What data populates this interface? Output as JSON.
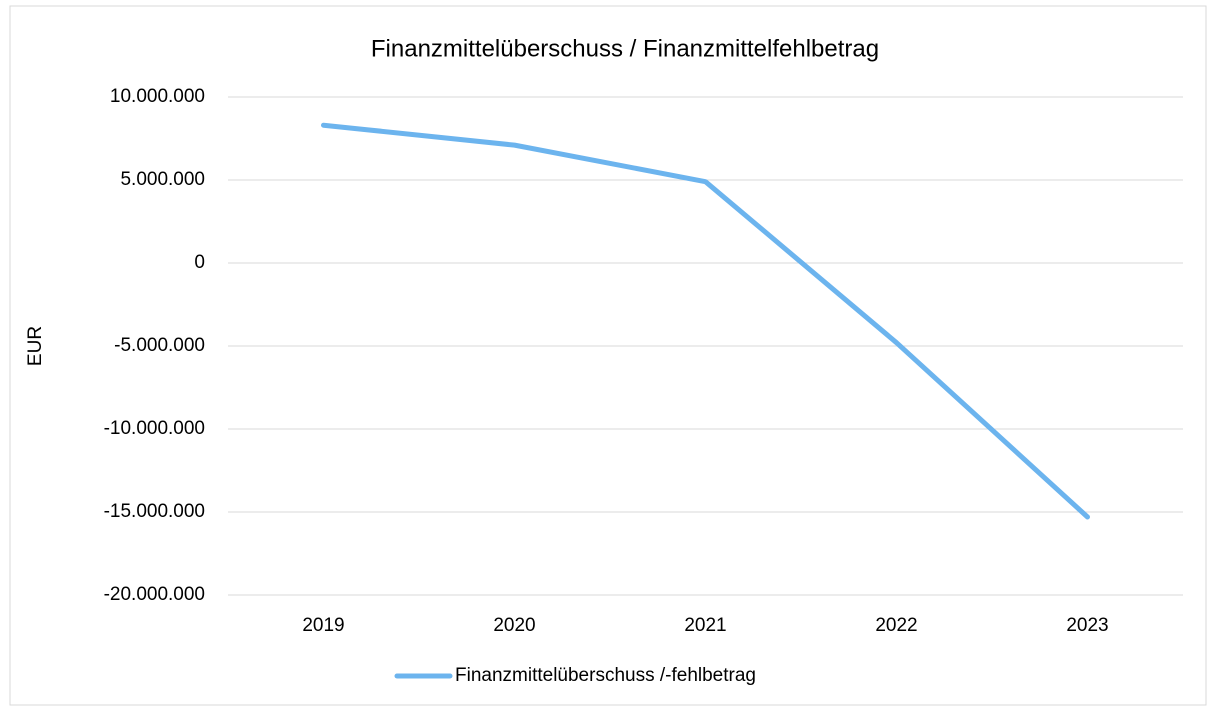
{
  "chart_data": {
    "type": "line",
    "title": "Finanzmittelüberschuss / Finanzmittelfehlbetrag",
    "y_label": "EUR",
    "categories": [
      "2019",
      "2020",
      "2021",
      "2022",
      "2023"
    ],
    "series": [
      {
        "name": "Finanzmittelüberschuss /-fehlbetrag",
        "color": "#6cb4ee",
        "values": [
          8300000,
          7100000,
          4900000,
          -4800000,
          -15300000
        ]
      }
    ],
    "ylim": [
      -20000000,
      10000000
    ],
    "yticks": [
      {
        "value": -20000000,
        "label": "-20.000.000"
      },
      {
        "value": -15000000,
        "label": "-15.000.000"
      },
      {
        "value": -10000000,
        "label": "-10.000.000"
      },
      {
        "value": -5000000,
        "label": "-5.000.000"
      },
      0,
      {
        "value": 5000000,
        "label": "5.000.000"
      },
      {
        "value": 10000000,
        "label": "10.000.000"
      }
    ],
    "grid": true,
    "legend": "bottom"
  }
}
